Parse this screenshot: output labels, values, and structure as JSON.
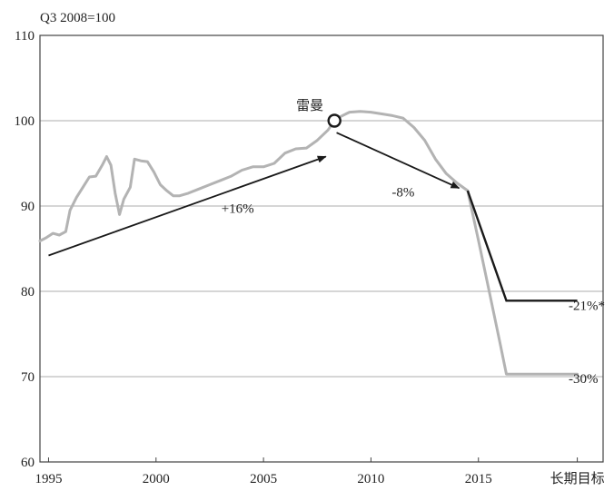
{
  "chart_data": {
    "type": "line",
    "unit_label": "Q3 2008=100",
    "xlim": [
      1994.6,
      2020.8
    ],
    "ylim": [
      60,
      110
    ],
    "y_ticks": [
      60,
      70,
      80,
      90,
      100,
      110
    ],
    "x_ticks": [
      {
        "x": 1995,
        "label": "1995"
      },
      {
        "x": 2000,
        "label": "2000"
      },
      {
        "x": 2005,
        "label": "2005"
      },
      {
        "x": 2010,
        "label": "2010"
      },
      {
        "x": 2015,
        "label": "2015"
      },
      {
        "x": 2019.6,
        "label": "长期目标"
      }
    ],
    "grid_y": [
      70,
      80,
      90,
      100
    ],
    "colors": {
      "history": "#b3b3b3",
      "projection": "#1a1a1a",
      "grid": "#bdbdbd",
      "arrow": "#1a1a1a"
    },
    "history": [
      [
        1994.6,
        85.9
      ],
      [
        1994.9,
        86.3
      ],
      [
        1995.2,
        86.8
      ],
      [
        1995.5,
        86.6
      ],
      [
        1995.8,
        87.0
      ],
      [
        1996.0,
        89.5
      ],
      [
        1996.3,
        91.0
      ],
      [
        1996.6,
        92.2
      ],
      [
        1996.9,
        93.4
      ],
      [
        1997.2,
        93.5
      ],
      [
        1997.5,
        94.8
      ],
      [
        1997.7,
        95.8
      ],
      [
        1997.9,
        94.8
      ],
      [
        1998.1,
        91.5
      ],
      [
        1998.3,
        89.0
      ],
      [
        1998.5,
        90.8
      ],
      [
        1998.8,
        92.2
      ],
      [
        1999.0,
        95.5
      ],
      [
        1999.3,
        95.3
      ],
      [
        1999.6,
        95.2
      ],
      [
        1999.9,
        94.0
      ],
      [
        2000.2,
        92.5
      ],
      [
        2000.5,
        91.8
      ],
      [
        2000.8,
        91.2
      ],
      [
        2001.1,
        91.2
      ],
      [
        2001.5,
        91.5
      ],
      [
        2002.0,
        92.0
      ],
      [
        2002.5,
        92.5
      ],
      [
        2003.0,
        93.0
      ],
      [
        2003.5,
        93.5
      ],
      [
        2004.0,
        94.2
      ],
      [
        2004.5,
        94.6
      ],
      [
        2005.0,
        94.6
      ],
      [
        2005.5,
        95.0
      ],
      [
        2006.0,
        96.2
      ],
      [
        2006.5,
        96.7
      ],
      [
        2007.0,
        96.8
      ],
      [
        2007.5,
        97.7
      ],
      [
        2008.0,
        98.9
      ],
      [
        2008.3,
        100.0
      ],
      [
        2008.6,
        100.5
      ],
      [
        2009.0,
        101.0
      ],
      [
        2009.5,
        101.1
      ],
      [
        2010.0,
        101.0
      ],
      [
        2010.5,
        100.8
      ],
      [
        2011.0,
        100.6
      ],
      [
        2011.5,
        100.3
      ],
      [
        2012.0,
        99.2
      ],
      [
        2012.5,
        97.7
      ],
      [
        2013.0,
        95.5
      ],
      [
        2013.5,
        93.8
      ],
      [
        2014.0,
        92.7
      ],
      [
        2014.5,
        91.8
      ],
      [
        2015.0,
        86.0
      ],
      [
        2015.5,
        80.0
      ],
      [
        2016.0,
        74.0
      ],
      [
        2016.3,
        70.3
      ],
      [
        2017.0,
        70.3
      ],
      [
        2018.0,
        70.3
      ],
      [
        2019.6,
        70.3
      ]
    ],
    "projection": [
      [
        2014.5,
        91.8
      ],
      [
        2016.3,
        78.9
      ],
      [
        2019.6,
        78.9
      ]
    ],
    "lehman_point": {
      "x": 2008.3,
      "y": 100.0,
      "label": "雷曼"
    },
    "arrows": [
      {
        "from": [
          1995.0,
          84.2
        ],
        "to": [
          2007.9,
          95.8
        ],
        "label": "+16%",
        "label_at": [
          2003.8,
          89.2
        ]
      },
      {
        "from": [
          2008.4,
          98.6
        ],
        "to": [
          2014.1,
          92.1
        ],
        "label": "-8%",
        "label_at": [
          2011.5,
          91.1
        ]
      }
    ],
    "end_labels": [
      {
        "text": "-21%*",
        "y": 78.9
      },
      {
        "text": "-30%",
        "y": 70.3
      }
    ]
  }
}
